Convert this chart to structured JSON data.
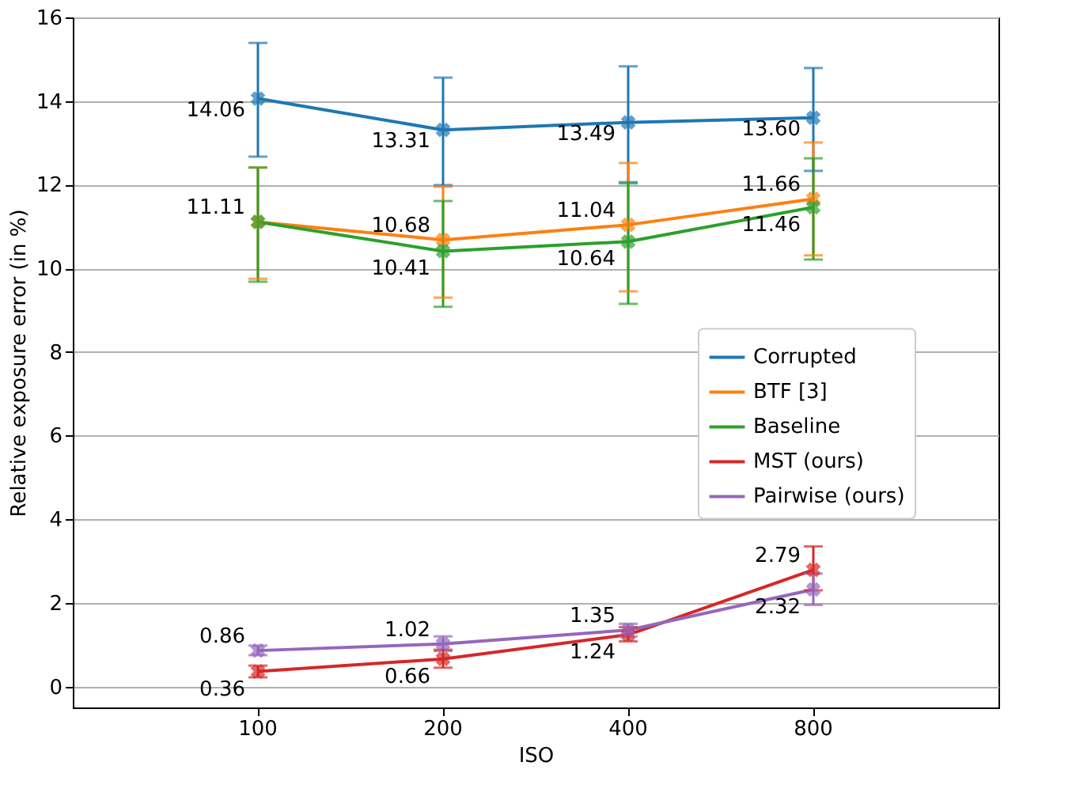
{
  "chart_data": {
    "type": "line",
    "xlabel": "ISO",
    "ylabel": "Relative exposure error (in %)",
    "categories": [
      "100",
      "200",
      "400",
      "800"
    ],
    "series": [
      {
        "name": "Corrupted",
        "color": "#1f77b4",
        "values": [
          14.06,
          13.31,
          13.49,
          13.6
        ],
        "errors": [
          [
            12.67,
            15.39
          ],
          [
            11.99,
            14.56
          ],
          [
            12.06,
            14.83
          ],
          [
            12.33,
            14.79
          ]
        ],
        "value_labels": [
          "14.06",
          "13.31",
          "13.49",
          "13.60"
        ]
      },
      {
        "name": "BTF [3]",
        "color": "#ff7f0e",
        "values": [
          11.11,
          10.68,
          11.04,
          11.66
        ],
        "errors": [
          [
            9.75,
            12.41
          ],
          [
            9.3,
            11.95
          ],
          [
            9.45,
            12.52
          ],
          [
            10.31,
            13.01
          ]
        ],
        "value_labels": [
          null,
          "10.68",
          "11.04",
          "11.66"
        ]
      },
      {
        "name": "Baseline",
        "color": "#2ca02c",
        "values": [
          11.11,
          10.41,
          10.64,
          11.46
        ],
        "errors": [
          [
            9.68,
            12.41
          ],
          [
            9.08,
            11.61
          ],
          [
            9.15,
            12.03
          ],
          [
            10.21,
            12.63
          ]
        ],
        "value_labels": [
          "11.11",
          "10.41",
          "10.64",
          "11.46"
        ]
      },
      {
        "name": "MST (ours)",
        "color": "#d62728",
        "values": [
          0.36,
          0.66,
          1.24,
          2.79
        ],
        "errors": [
          [
            0.22,
            0.5
          ],
          [
            0.45,
            0.88
          ],
          [
            1.08,
            1.42
          ],
          [
            2.3,
            3.35
          ]
        ],
        "value_labels": [
          "0.36",
          "0.66",
          "1.24",
          "2.79"
        ]
      },
      {
        "name": "Pairwise (ours)",
        "color": "#9467bd",
        "values": [
          0.86,
          1.02,
          1.35,
          2.32
        ],
        "errors": [
          [
            0.75,
            0.98
          ],
          [
            0.85,
            1.2
          ],
          [
            1.2,
            1.5
          ],
          [
            1.95,
            2.7
          ]
        ],
        "value_labels": [
          "0.86",
          "1.02",
          "1.35",
          "2.32"
        ]
      }
    ],
    "ylim": [
      -0.5,
      16
    ],
    "yticks": [
      0,
      2,
      4,
      6,
      8,
      10,
      12,
      14,
      16
    ],
    "grid": true,
    "legend": "right",
    "marker": "cross",
    "line_style": "solid"
  }
}
